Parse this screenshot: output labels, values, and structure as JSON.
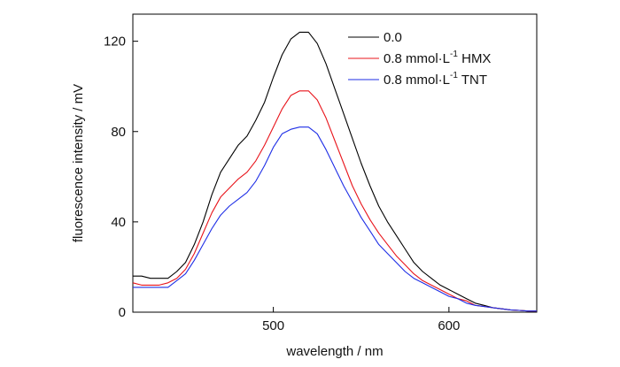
{
  "chart_data": {
    "type": "line",
    "xlabel": "wavelength / nm",
    "ylabel": "fluorescence intensity / mV",
    "xlim": [
      420,
      650
    ],
    "ylim": [
      0,
      132
    ],
    "xticks": [
      500,
      600
    ],
    "yticks": [
      0,
      40,
      80,
      120
    ],
    "grid": false,
    "legend": {
      "position": "top-right"
    },
    "series": [
      {
        "name": "0.0",
        "color": "#000000",
        "x": [
          420,
          425,
          430,
          435,
          440,
          445,
          450,
          455,
          460,
          465,
          470,
          475,
          480,
          485,
          490,
          495,
          500,
          505,
          510,
          515,
          520,
          525,
          530,
          535,
          540,
          545,
          550,
          555,
          560,
          565,
          570,
          575,
          580,
          585,
          590,
          595,
          600,
          605,
          610,
          615,
          620,
          625,
          630,
          635,
          640,
          645,
          650
        ],
        "y": [
          16,
          16,
          15,
          15,
          15,
          18,
          22,
          30,
          40,
          52,
          62,
          68,
          74,
          78,
          85,
          93,
          104,
          114,
          121,
          124,
          124,
          119,
          110,
          99,
          88,
          77,
          66,
          56,
          47,
          40,
          34,
          28,
          22,
          18,
          15,
          12,
          10,
          8,
          6,
          4,
          3,
          2,
          1.5,
          1,
          0.8,
          0.5,
          0.5
        ]
      },
      {
        "name_parts": {
          "prefix": "0.8  mmol·L",
          "sup": "-1",
          "suffix": "  HMX"
        },
        "color": "#e8141b",
        "x": [
          420,
          425,
          430,
          435,
          440,
          445,
          450,
          455,
          460,
          465,
          470,
          475,
          480,
          485,
          490,
          495,
          500,
          505,
          510,
          515,
          520,
          525,
          530,
          535,
          540,
          545,
          550,
          555,
          560,
          565,
          570,
          575,
          580,
          585,
          590,
          595,
          600,
          605,
          610,
          615,
          620,
          625,
          630,
          635,
          640,
          645,
          650
        ],
        "y": [
          13,
          12,
          12,
          12,
          13,
          15,
          19,
          26,
          35,
          44,
          51,
          55,
          59,
          62,
          67,
          74,
          82,
          90,
          96,
          98,
          98,
          94,
          86,
          76,
          66,
          56,
          48,
          41,
          35,
          30,
          25,
          21,
          17,
          14,
          12,
          10,
          8,
          6,
          5,
          3,
          2.5,
          2,
          1.5,
          1,
          0.8,
          0.5,
          0.5
        ]
      },
      {
        "name_parts": {
          "prefix": "0.8  mmol·L",
          "sup": "-1",
          "suffix": "  TNT"
        },
        "color": "#1e2ee6",
        "x": [
          420,
          425,
          430,
          435,
          440,
          445,
          450,
          455,
          460,
          465,
          470,
          475,
          480,
          485,
          490,
          495,
          500,
          505,
          510,
          515,
          520,
          525,
          530,
          535,
          540,
          545,
          550,
          555,
          560,
          565,
          570,
          575,
          580,
          585,
          590,
          595,
          600,
          605,
          610,
          615,
          620,
          625,
          630,
          635,
          640,
          645,
          650
        ],
        "y": [
          11,
          11,
          11,
          11,
          11,
          14,
          17,
          23,
          30,
          37,
          43,
          47,
          50,
          53,
          58,
          65,
          73,
          79,
          81,
          82,
          82,
          79,
          72,
          64,
          56,
          49,
          42,
          36,
          30,
          26,
          22,
          18,
          15,
          13,
          11,
          9,
          7,
          6,
          4,
          3,
          2.5,
          2,
          1.5,
          1,
          0.8,
          0.5,
          0.5
        ]
      }
    ]
  }
}
